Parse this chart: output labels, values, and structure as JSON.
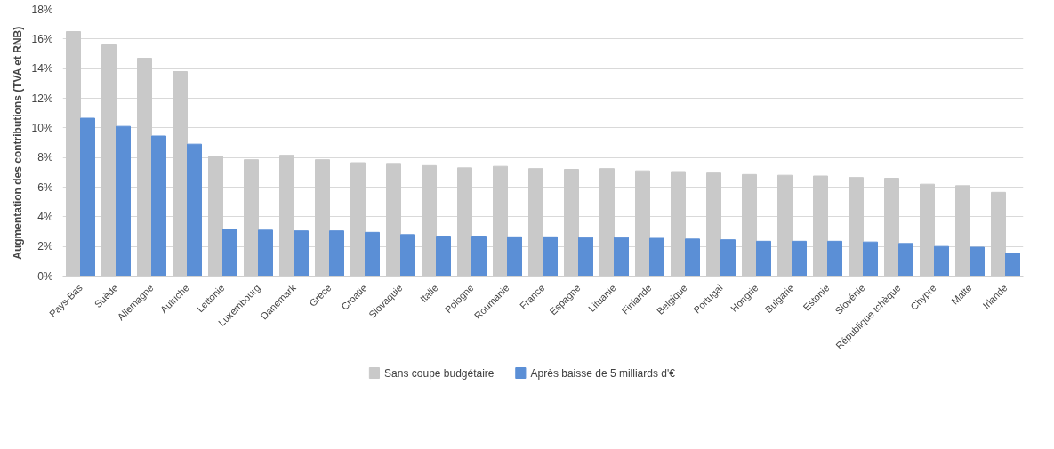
{
  "chart_data": {
    "type": "bar",
    "ylabel": "Augmentation des contributions (TVA et RNB)",
    "categories": [
      "Pays-Bas",
      "Suède",
      "Allemagne",
      "Autriche",
      "Lettonie",
      "Luxembourg",
      "Danemark",
      "Grèce",
      "Croatie",
      "Slovaquie",
      "Italie",
      "Pologne",
      "Roumanie",
      "France",
      "Espagne",
      "Lituanie",
      "Finlande",
      "Belgique",
      "Portugal",
      "Hongrie",
      "Bulgarie",
      "Estonie",
      "Slovénie",
      "République tchèque",
      "Chypre",
      "Malte",
      "Irlande"
    ],
    "series": [
      {
        "name": "Sans coupe budgétaire",
        "color": "#c9c9c9",
        "values": [
          16.5,
          15.6,
          14.7,
          13.8,
          8.1,
          7.85,
          8.15,
          7.85,
          7.65,
          7.6,
          7.45,
          7.3,
          7.4,
          7.25,
          7.2,
          7.25,
          7.1,
          7.05,
          6.95,
          6.85,
          6.8,
          6.75,
          6.65,
          6.6,
          6.2,
          6.1,
          5.65
        ]
      },
      {
        "name": "Après baisse de 5 milliards d'€",
        "color": "#5b8fd6",
        "values": [
          10.65,
          10.1,
          9.45,
          8.9,
          3.15,
          3.1,
          3.05,
          3.05,
          2.95,
          2.8,
          2.7,
          2.7,
          2.65,
          2.65,
          2.6,
          2.6,
          2.55,
          2.5,
          2.45,
          2.35,
          2.35,
          2.35,
          2.3,
          2.2,
          2.0,
          1.95,
          1.55
        ]
      }
    ],
    "ylim": [
      0,
      18
    ],
    "yticks": [
      {
        "value": 0,
        "label": "0%"
      },
      {
        "value": 2,
        "label": "2%"
      },
      {
        "value": 4,
        "label": "4%"
      },
      {
        "value": 6,
        "label": "6%"
      },
      {
        "value": 8,
        "label": "8%"
      },
      {
        "value": 10,
        "label": "10%"
      },
      {
        "value": 12,
        "label": "12%"
      },
      {
        "value": 14,
        "label": "14%"
      },
      {
        "value": 16,
        "label": "16%"
      },
      {
        "value": 18,
        "label": "18%"
      }
    ],
    "grid": "y",
    "legend": "bottom"
  }
}
